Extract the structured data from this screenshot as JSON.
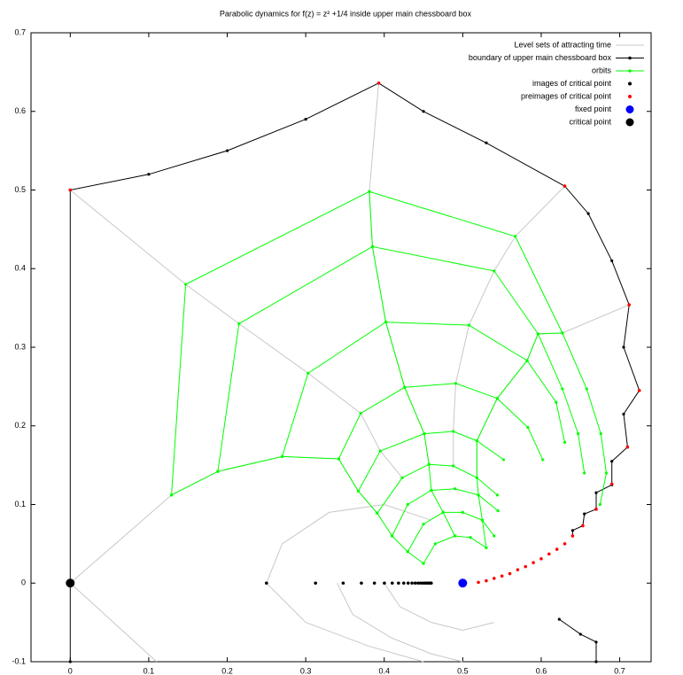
{
  "chart_data": {
    "type": "line",
    "title": "Parabolic dynamics for f(z) = z² +1/4 inside upper main chessboard box",
    "xlim": [
      -0.05,
      0.74
    ],
    "ylim": [
      -0.1,
      0.7
    ],
    "xticks": [
      0,
      0.1,
      0.2,
      0.3,
      0.4,
      0.5,
      0.6,
      0.7
    ],
    "yticks": [
      -0.1,
      0,
      0.1,
      0.2,
      0.3,
      0.4,
      0.5,
      0.6,
      0.7
    ],
    "legend": "upper right",
    "series": [
      {
        "name": "Level sets of attracting time",
        "color": "#c8c8c8",
        "style": "line",
        "x": [
          0,
          0.147,
          0.215,
          0.303,
          0.37,
          0.395,
          0.423,
          null,
          0.393,
          0.381,
          0.385,
          0.402,
          0.426,
          0.451,
          0.457,
          null,
          0.63,
          0.567,
          0.54,
          0.508,
          0.491,
          0.488,
          0.488,
          null,
          0.712,
          0.627,
          0.596,
          0.582,
          0.544,
          0.518,
          0.518,
          null,
          0,
          0.129,
          0.188,
          0.27,
          0.342,
          0.367,
          0.391,
          null,
          0,
          0.11,
          null,
          0.25,
          0.27,
          0.33,
          0.4,
          0.46,
          null,
          0.25,
          0.3,
          0.38,
          0.45,
          null,
          0.34,
          0.36,
          0.41,
          0.46,
          0.5,
          null,
          0.4,
          0.42,
          0.46,
          0.5,
          0.54
        ],
        "y": [
          0.5,
          0.38,
          0.33,
          0.267,
          0.216,
          0.168,
          0.134,
          null,
          0.636,
          0.498,
          0.428,
          0.332,
          0.249,
          0.19,
          0.151,
          null,
          0.505,
          0.441,
          0.397,
          0.328,
          0.254,
          0.193,
          0.149,
          null,
          0.354,
          0.318,
          0.317,
          0.283,
          0.235,
          0.181,
          0.134,
          null,
          0,
          0.112,
          0.142,
          0.161,
          0.158,
          0.117,
          0.089,
          null,
          0,
          -0.1,
          null,
          0,
          0.05,
          0.09,
          0.1,
          0.08,
          null,
          0,
          -0.05,
          -0.08,
          -0.1,
          null,
          0,
          -0.04,
          -0.07,
          -0.09,
          -0.1,
          null,
          0,
          -0.03,
          -0.05,
          -0.06,
          -0.05
        ]
      },
      {
        "name": "boundary of upper main chessboard box",
        "color": "#000000",
        "style": "line-points",
        "x": [
          0,
          0,
          0.1,
          0.2,
          0.3,
          0.393,
          0.45,
          0.53,
          0.63,
          0.66,
          0.69,
          0.712,
          0.705,
          0.725,
          0.705,
          0.71,
          0.69,
          0.69,
          0.67,
          0.67,
          0.655,
          0.653,
          0.64,
          0.64,
          null,
          0.623,
          0.65,
          0.67,
          0.67
        ],
        "y": [
          -0.1,
          0.5,
          0.52,
          0.55,
          0.59,
          0.636,
          0.6,
          0.56,
          0.505,
          0.47,
          0.41,
          0.354,
          0.3,
          0.245,
          0.215,
          0.173,
          0.155,
          0.125,
          0.115,
          0.094,
          0.088,
          0.073,
          0.067,
          0.06,
          null,
          -0.046,
          -0.065,
          -0.075,
          -0.1
        ]
      },
      {
        "name": "orbits",
        "color": "#00ff00",
        "style": "line-points",
        "x": [
          0.129,
          0.147,
          0.381,
          0.567,
          0.627,
          0.658,
          0.676,
          0.683,
          0.675,
          null,
          0.188,
          0.215,
          0.385,
          0.54,
          0.596,
          0.627,
          0.647,
          0.655,
          null,
          0.27,
          0.303,
          0.402,
          0.508,
          0.582,
          0.619,
          0.63,
          null,
          0.342,
          0.37,
          0.426,
          0.491,
          0.544,
          0.583,
          0.602,
          null,
          0.367,
          0.395,
          0.451,
          0.488,
          0.518,
          0.552,
          null,
          0.391,
          0.423,
          0.457,
          0.488,
          0.518,
          0.544,
          null,
          0.41,
          0.43,
          0.46,
          0.49,
          0.52,
          0.545,
          null,
          0.43,
          0.45,
          0.475,
          0.5,
          0.525,
          0.54,
          null,
          0.45,
          0.465,
          0.49,
          0.51,
          0.53,
          null,
          0.129,
          0.188,
          0.27,
          0.342,
          0.367,
          0.391,
          0.41,
          0.43,
          0.45,
          null,
          0.381,
          0.385,
          0.402,
          0.426,
          0.451,
          0.457,
          0.46,
          0.475,
          0.49,
          null,
          0.627,
          0.596,
          0.582,
          0.544,
          0.518,
          0.518,
          0.52,
          0.525,
          0.53
        ],
        "y": [
          0.112,
          0.38,
          0.498,
          0.441,
          0.318,
          0.247,
          0.19,
          0.14,
          0.1,
          null,
          0.142,
          0.33,
          0.428,
          0.397,
          0.317,
          0.247,
          0.19,
          0.14,
          null,
          0.161,
          0.267,
          0.332,
          0.328,
          0.283,
          0.23,
          0.179,
          null,
          0.158,
          0.216,
          0.249,
          0.254,
          0.235,
          0.198,
          0.157,
          null,
          0.117,
          0.168,
          0.19,
          0.193,
          0.181,
          0.157,
          null,
          0.089,
          0.134,
          0.151,
          0.149,
          0.134,
          0.112,
          null,
          0.06,
          0.1,
          0.118,
          0.12,
          0.112,
          0.092,
          null,
          0.04,
          0.075,
          0.09,
          0.09,
          0.08,
          0.06,
          null,
          0.025,
          0.05,
          0.06,
          0.058,
          0.045,
          null,
          0.112,
          0.142,
          0.161,
          0.158,
          0.117,
          0.089,
          0.06,
          0.04,
          0.025,
          null,
          0.498,
          0.428,
          0.332,
          0.249,
          0.19,
          0.151,
          0.118,
          0.09,
          0.06,
          null,
          0.318,
          0.317,
          0.283,
          0.235,
          0.181,
          0.134,
          0.112,
          0.08,
          0.045
        ]
      },
      {
        "name": "images of critical point",
        "color": "#000000",
        "style": "points",
        "marker": "small",
        "x": [
          0.25,
          0.3125,
          0.3477,
          0.3709,
          0.3875,
          0.4002,
          0.4102,
          0.4182,
          0.4249,
          0.4305,
          0.4354,
          0.4395,
          0.4432,
          0.4464,
          0.4493,
          0.4519,
          0.4542,
          0.4563,
          0.4582,
          0.4599
        ],
        "y": [
          0,
          0,
          0,
          0,
          0,
          0,
          0,
          0,
          0,
          0,
          0,
          0,
          0,
          0,
          0,
          0,
          0,
          0,
          0,
          0
        ]
      },
      {
        "name": "preimages of critical point",
        "color": "#ff0000",
        "style": "points",
        "marker": "small",
        "x": [
          0,
          0.393,
          0.63,
          0.712,
          0.725,
          0.71,
          0.69,
          0.67,
          0.653,
          0.64,
          0.63,
          0.62,
          0.61,
          0.6,
          0.59,
          0.58,
          0.57,
          0.56,
          0.55,
          0.54,
          0.53,
          0.52
        ],
        "y": [
          0.5,
          0.636,
          0.505,
          0.354,
          0.245,
          0.173,
          0.126,
          0.094,
          0.073,
          0.06,
          0.05,
          0.043,
          0.037,
          0.031,
          0.026,
          0.021,
          0.017,
          0.012,
          0.009,
          0.006,
          0.003,
          0.001
        ]
      },
      {
        "name": "fixed point",
        "color": "#0000ff",
        "style": "points",
        "marker": "big",
        "x": [
          0.5
        ],
        "y": [
          0
        ]
      },
      {
        "name": "critical point",
        "color": "#000000",
        "style": "points",
        "marker": "big",
        "x": [
          0
        ],
        "y": [
          0
        ]
      }
    ]
  }
}
